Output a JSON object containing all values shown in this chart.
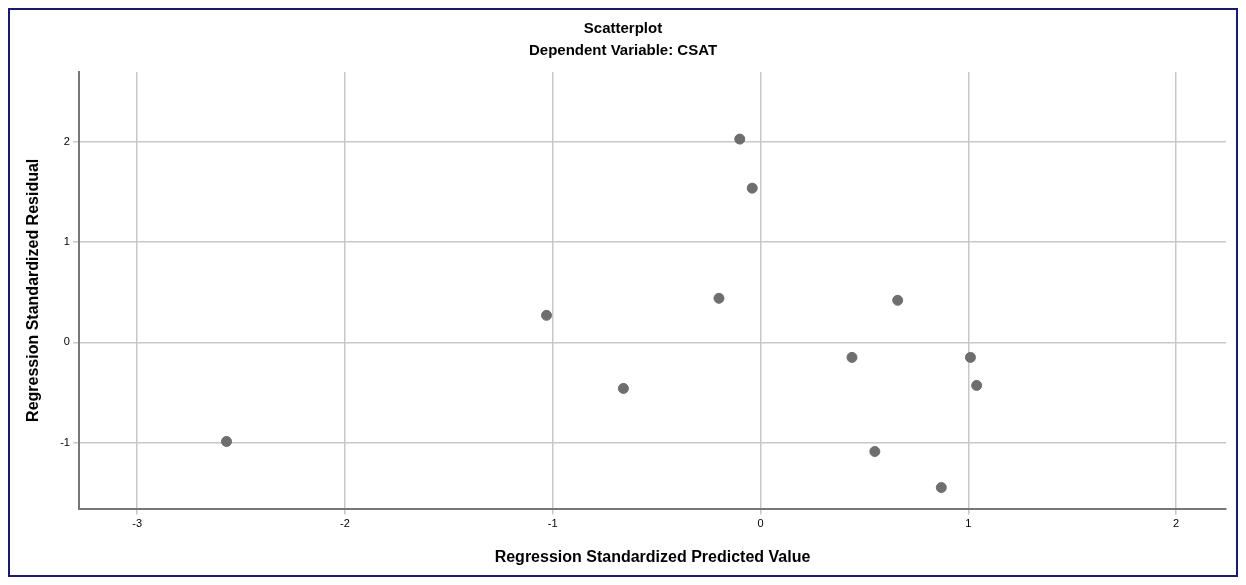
{
  "chart_data": {
    "type": "scatter",
    "title": "Scatterplot",
    "subtitle": "Dependent Variable: CSAT",
    "xlabel": "Regression Standardized Predicted Value",
    "ylabel": "Regression Standardized Residual",
    "x": [
      -2.57,
      -1.03,
      -0.66,
      -0.2,
      -0.1,
      -0.04,
      0.44,
      0.55,
      0.66,
      0.87,
      1.01,
      1.04
    ],
    "values": [
      -0.99,
      0.27,
      -0.46,
      0.44,
      2.03,
      1.54,
      -0.15,
      -1.09,
      0.42,
      -1.45,
      -0.15,
      -0.43
    ],
    "color": "#6e6e6e",
    "marker": "circle",
    "xlim": [
      -3.28,
      2.24
    ],
    "xticks": [
      -3,
      -2,
      -1,
      0,
      1,
      2
    ],
    "ylim": [
      -1.66,
      2.7
    ],
    "yticks": [
      -1,
      0,
      1,
      2
    ],
    "grid": true,
    "legend": false
  }
}
